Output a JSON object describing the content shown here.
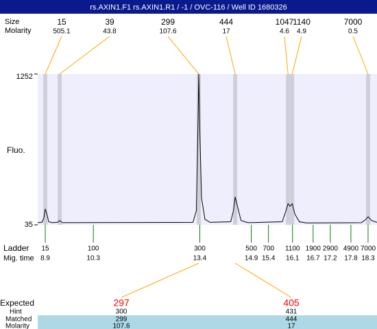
{
  "chart_data": {
    "type": "electropherogram",
    "title": "rs.AXIN1.F1  rs.AXIN1.R1 / -1 / OVC-116 / Well ID 1680326",
    "y_label": "Fluo.",
    "xlim": [
      8.68,
      18.56
    ],
    "ylim": [
      35,
      1252
    ],
    "yticks": [
      35,
      1252
    ],
    "trace": {
      "color": "#000000",
      "x": [
        8.68,
        8.8,
        8.86,
        8.9,
        8.95,
        9.0,
        9.1,
        9.25,
        9.32,
        9.4,
        13.2,
        13.3,
        13.35,
        13.37,
        13.4,
        13.45,
        13.55,
        13.7,
        14.3,
        14.38,
        14.43,
        14.5,
        14.6,
        14.8,
        15.8,
        15.9,
        15.97,
        16.03,
        16.09,
        16.17,
        16.3,
        16.5,
        18.1,
        18.22,
        18.3,
        18.4,
        18.56
      ],
      "values": [
        52,
        55,
        90,
        163,
        120,
        60,
        52,
        55,
        69,
        52,
        55,
        150,
        900,
        1252,
        800,
        250,
        80,
        55,
        60,
        150,
        260,
        180,
        70,
        52,
        60,
        140,
        205,
        185,
        205,
        120,
        60,
        50,
        52,
        75,
        100,
        70,
        55
      ]
    },
    "peaks": {
      "size_label": "Size",
      "molarity_label": "Molarity",
      "color": "#ffa500",
      "sizes": [
        15,
        39,
        299,
        444,
        1047,
        1140,
        7000
      ],
      "molarity": [
        505.1,
        43.8,
        107.6,
        17,
        4.6,
        4.9,
        0.5
      ],
      "x": [
        8.9,
        9.32,
        13.37,
        14.43,
        15.97,
        16.09,
        18.3
      ]
    },
    "ladder": {
      "label": "Ladder",
      "time_label": "Mig. time",
      "color": "#008000",
      "sizes": [
        15,
        100,
        300,
        500,
        700,
        1100,
        1900,
        2900,
        4900,
        7000
      ],
      "x": [
        8.9,
        10.3,
        13.4,
        14.9,
        15.4,
        16.1,
        16.7,
        17.2,
        17.8,
        18.3
      ]
    },
    "expected": {
      "label": "Expected",
      "hint_label": "Hint",
      "matched_label": "Matched",
      "molarity_label": "Molarity",
      "expected": [
        297,
        405
      ],
      "hint": [
        300,
        431
      ],
      "matched": [
        299,
        444
      ],
      "molarity": [
        107.6,
        17
      ]
    }
  }
}
